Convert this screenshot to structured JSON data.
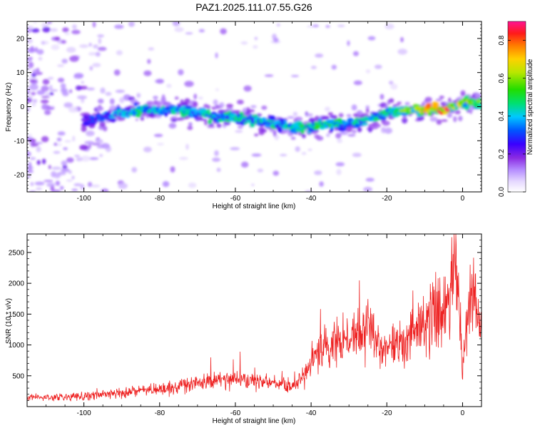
{
  "title": "PAZ1.2025.111.07.55.G26",
  "chart_data": [
    {
      "type": "heatmap",
      "xlabel": "Height of straight line (km)",
      "ylabel": "Frequency (Hz)",
      "xlim": [
        -115,
        5
      ],
      "ylim": [
        -25,
        25
      ],
      "xticks": [
        -100,
        -80,
        -60,
        -40,
        -20,
        0
      ],
      "yticks": [
        -20,
        -10,
        0,
        10,
        20
      ],
      "colorbar": {
        "label": "Normalized spectral amplitude",
        "range": [
          0.0,
          0.9
        ],
        "ticks": [
          0.0,
          0.2,
          0.4,
          0.6,
          0.8
        ]
      },
      "ridge": {
        "x": [
          -110,
          -100,
          -95,
          -90,
          -85,
          -80,
          -75,
          -70,
          -65,
          -60,
          -55,
          -50,
          -45,
          -40,
          -35,
          -30,
          -25,
          -20,
          -15,
          -10,
          -5,
          0,
          5
        ],
        "freq": [
          -5,
          -4,
          -3,
          -2,
          -1,
          -1,
          -1,
          -2,
          -3,
          -3,
          -4,
          -5,
          -6,
          -6,
          -5,
          -5,
          -4,
          -2,
          -1,
          -1,
          -1,
          1,
          1
        ],
        "amplitude": [
          0.2,
          0.25,
          0.35,
          0.4,
          0.45,
          0.45,
          0.45,
          0.45,
          0.45,
          0.45,
          0.45,
          0.45,
          0.5,
          0.5,
          0.5,
          0.45,
          0.45,
          0.5,
          0.6,
          0.7,
          0.85,
          0.6,
          0.6
        ]
      }
    },
    {
      "type": "line",
      "xlabel": "Height of straight line (km)",
      "ylabel": "SNR (10 * v/v)",
      "xlim": [
        -115,
        5
      ],
      "ylim": [
        0,
        2800
      ],
      "xticks": [
        -100,
        -80,
        -60,
        -40,
        -20,
        0
      ],
      "yticks": [
        500,
        1000,
        1500,
        2000,
        2500
      ],
      "line_color": "#ee2222",
      "series": [
        {
          "x": [
            -115,
            -110,
            -105,
            -100,
            -95,
            -90,
            -85,
            -80,
            -75,
            -70,
            -65,
            -60,
            -55,
            -50,
            -45,
            -42,
            -40,
            -38,
            -36,
            -34,
            -32,
            -30,
            -28,
            -26,
            -25,
            -24,
            -22,
            -20,
            -18,
            -16,
            -14,
            -12,
            -10,
            -8,
            -6,
            -4,
            -3,
            -2,
            -1,
            0,
            1,
            2,
            3,
            4,
            5
          ],
          "y": [
            150,
            150,
            160,
            170,
            200,
            230,
            260,
            280,
            320,
            380,
            430,
            460,
            420,
            380,
            330,
            450,
            700,
            900,
            950,
            1000,
            1050,
            1100,
            1150,
            1250,
            1500,
            1100,
            1000,
            1000,
            1050,
            1000,
            1100,
            1200,
            1350,
            1450,
            1550,
            1700,
            2000,
            2400,
            1700,
            600,
            1300,
            1700,
            1800,
            1500,
            1100
          ]
        }
      ]
    }
  ]
}
